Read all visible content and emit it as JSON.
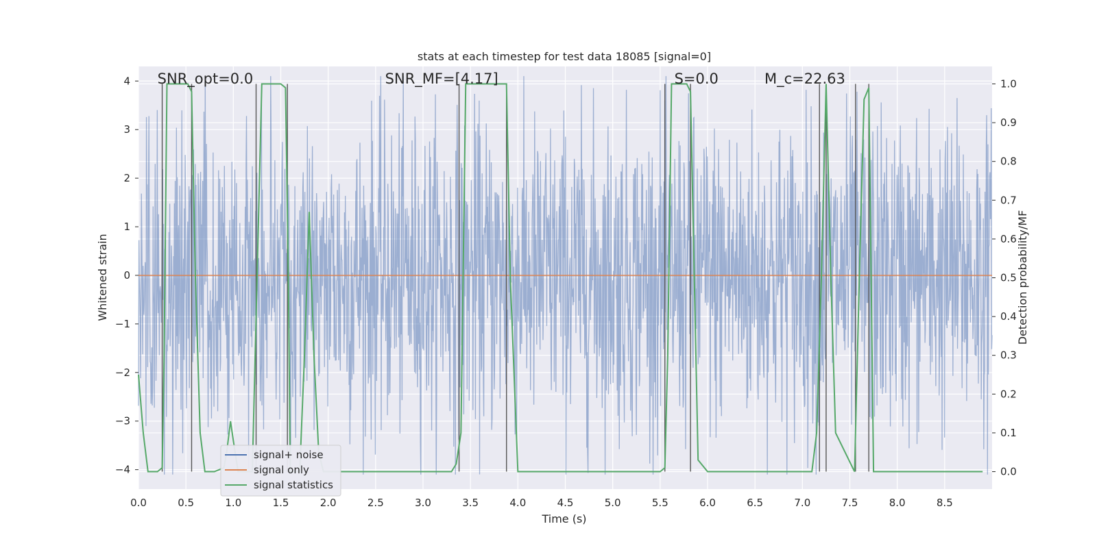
{
  "chart_data": {
    "type": "line",
    "title": "stats at each timestep for test data 18085 [signal=0]",
    "xlabel": "Time (s)",
    "ylabel": "Whitened strain",
    "y2label": "Detection probability/MF",
    "xlim": [
      0,
      9.0
    ],
    "ylim": [
      -4.4,
      4.3
    ],
    "y2lim": [
      -0.045,
      1.045
    ],
    "xticks": [
      "0.0",
      "0.5",
      "1.0",
      "1.5",
      "2.0",
      "2.5",
      "3.0",
      "3.5",
      "4.0",
      "4.5",
      "5.0",
      "5.5",
      "6.0",
      "6.5",
      "7.0",
      "7.5",
      "8.0",
      "8.5"
    ],
    "yticks": [
      "−4",
      "−3",
      "−2",
      "−1",
      "0",
      "1",
      "2",
      "3",
      "4"
    ],
    "y2ticks": [
      "0.0",
      "0.1",
      "0.2",
      "0.3",
      "0.4",
      "0.5",
      "0.6",
      "0.7",
      "0.8",
      "0.9",
      "1.0"
    ],
    "grid": true,
    "legend_position": "lower-left",
    "annotations": [
      {
        "text": "SNR_opt=0.0",
        "x": 0.2,
        "y": 3.95
      },
      {
        "text": "SNR_MF=[4.17]",
        "x": 2.6,
        "y": 3.95
      },
      {
        "text": "S=0.0",
        "x": 5.65,
        "y": 3.95
      },
      {
        "text": "M_c=22.63",
        "x": 6.6,
        "y": 3.95
      }
    ],
    "series": [
      {
        "name": "signal+ noise",
        "color": "#4c72b0",
        "axis": "left",
        "kind": "noise",
        "amplitude_sigma": 1.0,
        "points": 2048
      },
      {
        "name": "signal only",
        "color": "#dd8452",
        "axis": "left",
        "x": [
          0,
          9.0
        ],
        "y": [
          0,
          0
        ]
      },
      {
        "name": "signal statistics",
        "color": "#55a868",
        "axis": "right",
        "x": [
          0.0,
          0.05,
          0.1,
          0.2,
          0.25,
          0.27,
          0.3,
          0.52,
          0.56,
          0.6,
          0.65,
          0.7,
          0.8,
          0.9,
          0.93,
          0.97,
          1.0,
          1.05,
          1.1,
          1.2,
          1.25,
          1.3,
          1.4,
          1.5,
          1.55,
          1.58,
          1.6,
          1.65,
          1.7,
          1.75,
          1.8,
          1.85,
          1.9,
          1.95,
          2.0,
          3.3,
          3.35,
          3.4,
          3.45,
          3.88,
          3.92,
          4.0,
          4.5,
          5.0,
          5.5,
          5.55,
          5.58,
          5.62,
          5.78,
          5.82,
          5.86,
          5.9,
          6.0,
          7.1,
          7.15,
          7.2,
          7.25,
          7.3,
          7.35,
          7.55,
          7.6,
          7.65,
          7.7,
          7.75,
          7.8,
          8.3,
          8.9
        ],
        "y": [
          0.25,
          0.1,
          0.0,
          0.0,
          0.01,
          0.3,
          1.0,
          1.0,
          0.98,
          0.5,
          0.1,
          0.0,
          0.0,
          0.01,
          0.05,
          0.13,
          0.08,
          0.0,
          0.0,
          0.0,
          0.5,
          1.0,
          1.0,
          1.0,
          0.99,
          0.5,
          0.0,
          0.0,
          0.0,
          0.3,
          0.67,
          0.3,
          0.05,
          0.0,
          0.0,
          0.0,
          0.02,
          0.1,
          1.0,
          1.0,
          0.5,
          0.0,
          0.0,
          0.0,
          0.0,
          0.01,
          0.3,
          1.0,
          1.0,
          0.98,
          0.5,
          0.03,
          0.0,
          0.0,
          0.1,
          0.5,
          1.0,
          0.5,
          0.1,
          0.0,
          0.5,
          0.96,
          0.99,
          0.0,
          0.0,
          0.0,
          0.0
        ]
      }
    ],
    "vertical_markers": [
      0.25,
      0.56,
      1.24,
      1.57,
      3.38,
      3.88,
      5.55,
      5.82,
      7.18,
      7.25,
      7.56,
      7.7
    ]
  }
}
